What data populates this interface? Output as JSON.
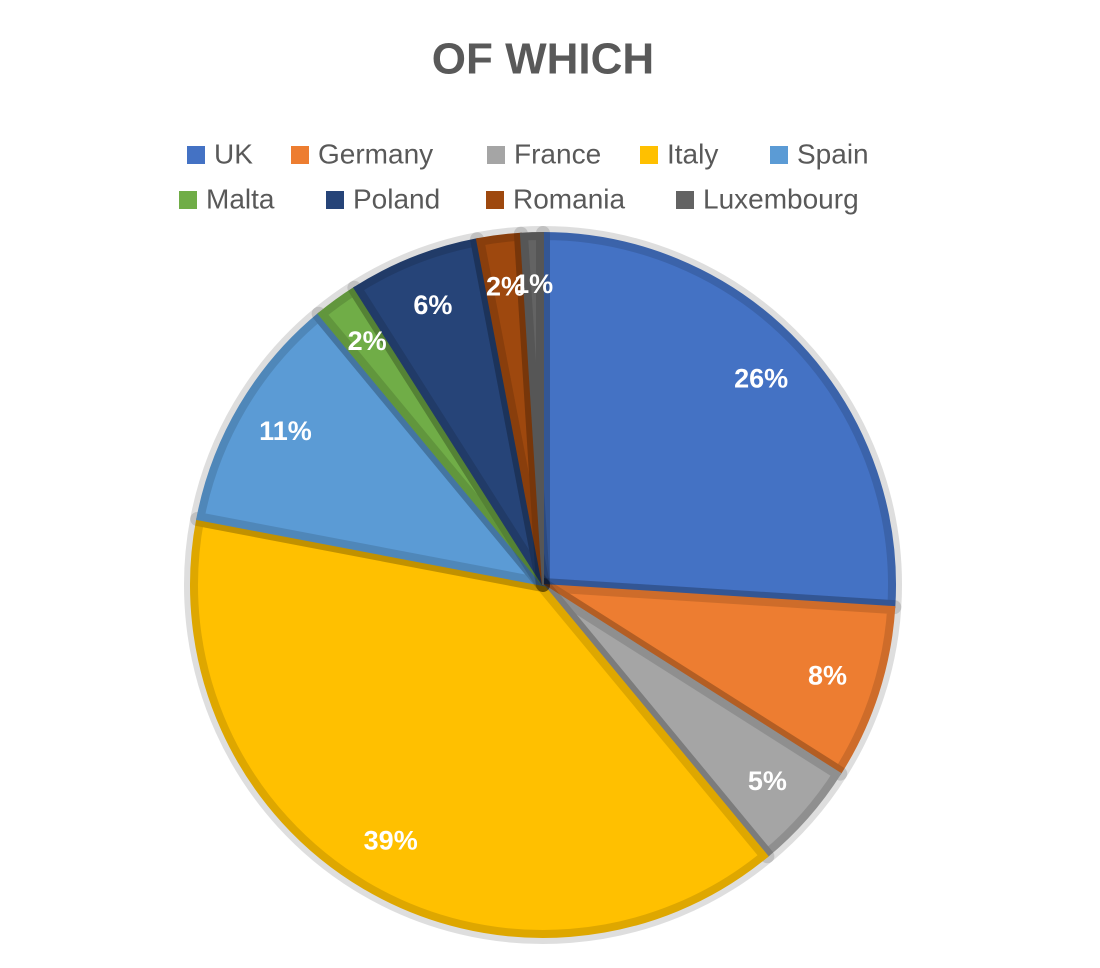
{
  "chart_data": {
    "type": "pie",
    "title": "OF WHICH",
    "categories": [
      "UK",
      "Germany",
      "France",
      "Italy",
      "Spain",
      "Malta",
      "Poland",
      "Romania",
      "Luxembourg"
    ],
    "values": [
      26,
      8,
      5,
      39,
      11,
      2,
      6,
      2,
      1
    ],
    "value_labels": [
      "26%",
      "8%",
      "5%",
      "39%",
      "11%",
      "2%",
      "6%",
      "2%",
      "1%"
    ],
    "colors": [
      "#4472c4",
      "#ed7d31",
      "#a5a5a5",
      "#ffc000",
      "#5b9bd5",
      "#70ad47",
      "#264478",
      "#9e480e",
      "#636363"
    ],
    "legend": "top"
  }
}
